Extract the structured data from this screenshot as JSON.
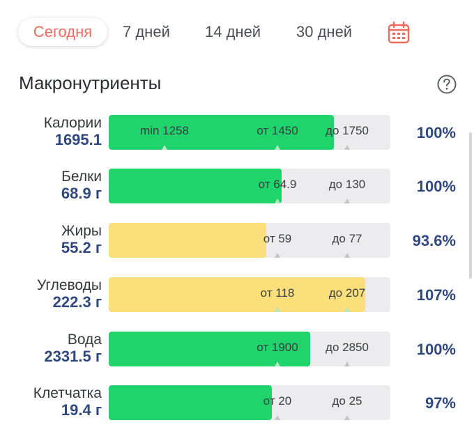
{
  "tabs": [
    "Сегодня",
    "7 дней",
    "14 дней",
    "30 дней"
  ],
  "icons": {
    "calendar": "calendar-icon",
    "help": "help-icon"
  },
  "section_title": "Макронутриенты",
  "colors": {
    "accent": "#f06a5e",
    "ok": "#1fd46b",
    "warn": "#fbdf7b",
    "value": "#2f4880",
    "track": "#ececef"
  },
  "nutrients": [
    {
      "name": "Калории",
      "amount": "1695.1",
      "fill_fraction": 0.8,
      "status": "ok",
      "marks": [
        {
          "label": "min 1258"
        },
        {
          "label": "от 1450"
        },
        {
          "label": "до 1750"
        }
      ],
      "percent": "100%"
    },
    {
      "name": "Белки",
      "amount": "68.9 г",
      "fill_fraction": 0.615,
      "status": "ok",
      "marks": [
        {
          "label": "от 64.9"
        },
        {
          "label": "до 130"
        }
      ],
      "percent": "100%"
    },
    {
      "name": "Жиры",
      "amount": "55.2 г",
      "fill_fraction": 0.56,
      "status": "warn",
      "marks": [
        {
          "label": "от 59"
        },
        {
          "label": "до 77"
        }
      ],
      "percent": "93.6%"
    },
    {
      "name": "Углеводы",
      "amount": "222.3 г",
      "fill_fraction": 0.91,
      "status": "warn",
      "marks": [
        {
          "label": "от 118"
        },
        {
          "label": "до 207"
        }
      ],
      "percent": "107%"
    },
    {
      "name": "Вода",
      "amount": "2331.5 г",
      "fill_fraction": 0.715,
      "status": "ok",
      "marks": [
        {
          "label": "от 1900"
        },
        {
          "label": "до 2850"
        }
      ],
      "percent": "100%"
    },
    {
      "name": "Клетчатка",
      "amount": "19.4 г",
      "fill_fraction": 0.58,
      "status": "ok",
      "marks": [
        {
          "label": "от 20"
        },
        {
          "label": "до 25"
        }
      ],
      "percent": "97%"
    }
  ]
}
